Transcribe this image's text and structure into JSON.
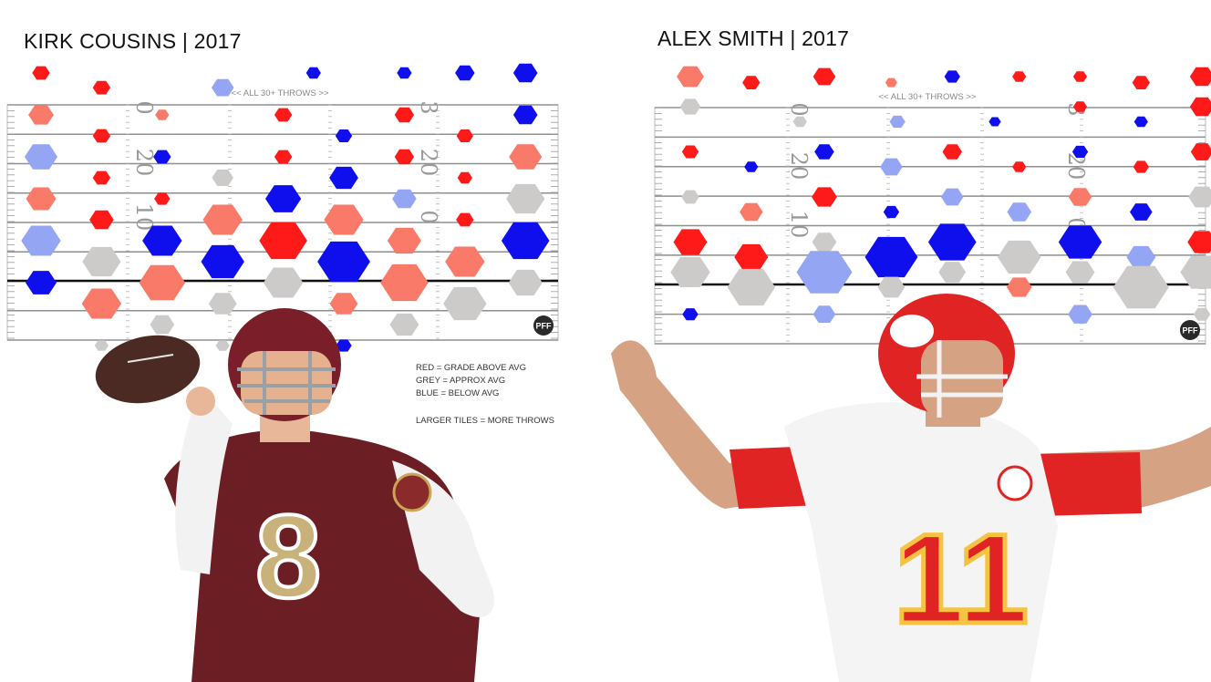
{
  "legend": {
    "red": "RED = GRADE ABOVE AVG",
    "grey": "GREY = APPROX AVG",
    "blue": "BLUE = BELOW AVG",
    "size": "LARGER TILES = MORE THROWS"
  },
  "colors": {
    "2": "#ff1a1a",
    "1": "#fa7a6a",
    "0": "#cdcaca",
    "-1": "#94a6f3",
    "-2": "#0f0fee",
    "field_line": "#8f8f8f",
    "los_line": "#111111"
  },
  "chart_data": [
    {
      "type": "heatmap",
      "title": "KIRK COUSINS | 2017",
      "subtitle": "<< ALL 30+ THROWS >>",
      "field_numbers": [
        "0",
        "3",
        "20",
        "20",
        "10",
        "0"
      ],
      "badge": "PFF",
      "columns": 9,
      "cells": [
        {
          "col": 0,
          "row": 0,
          "grade": 2,
          "size": 1
        },
        {
          "col": 1,
          "row": 0.35,
          "grade": 2,
          "size": 1
        },
        {
          "col": 3,
          "row": 0.35,
          "grade": -1,
          "size": 1.5
        },
        {
          "col": 4.5,
          "row": 0,
          "grade": -2,
          "size": 0.7
        },
        {
          "col": 6,
          "row": 0,
          "grade": -2,
          "size": 0.7
        },
        {
          "col": 7,
          "row": 0,
          "grade": -2,
          "size": 1.2
        },
        {
          "col": 8,
          "row": 0,
          "grade": -2,
          "size": 1.7
        },
        {
          "col": 0,
          "row": 1,
          "grade": 1,
          "size": 1.8
        },
        {
          "col": 2,
          "row": 1,
          "grade": 1,
          "size": 0.6
        },
        {
          "col": 4,
          "row": 1,
          "grade": 2,
          "size": 1
        },
        {
          "col": 6,
          "row": 1,
          "grade": 2,
          "size": 1.2
        },
        {
          "col": 8,
          "row": 1,
          "grade": -2,
          "size": 1.7
        },
        {
          "col": 1,
          "row": 1.5,
          "grade": 2,
          "size": 1
        },
        {
          "col": 5,
          "row": 1.5,
          "grade": -2,
          "size": 0.9
        },
        {
          "col": 7,
          "row": 1.5,
          "grade": 2,
          "size": 0.9
        },
        {
          "col": 0,
          "row": 2,
          "grade": -1,
          "size": 2.6
        },
        {
          "col": 2,
          "row": 2,
          "grade": -2,
          "size": 1
        },
        {
          "col": 4,
          "row": 2,
          "grade": 2,
          "size": 1
        },
        {
          "col": 6,
          "row": 2,
          "grade": 2,
          "size": 1.2
        },
        {
          "col": 8,
          "row": 2,
          "grade": 1,
          "size": 2.6
        },
        {
          "col": 1,
          "row": 2.5,
          "grade": 2,
          "size": 1
        },
        {
          "col": 3,
          "row": 2.5,
          "grade": 0,
          "size": 1.4
        },
        {
          "col": 5,
          "row": 2.5,
          "grade": -2,
          "size": 2.2
        },
        {
          "col": 7,
          "row": 2.5,
          "grade": 2,
          "size": 0.7
        },
        {
          "col": 0,
          "row": 3,
          "grade": 1,
          "size": 2.3
        },
        {
          "col": 2,
          "row": 3,
          "grade": 2,
          "size": 0.8
        },
        {
          "col": 4,
          "row": 3,
          "grade": -2,
          "size": 2.9
        },
        {
          "col": 6,
          "row": 3,
          "grade": -1,
          "size": 1.7
        },
        {
          "col": 8,
          "row": 3,
          "grade": 0,
          "size": 3.2
        },
        {
          "col": 1,
          "row": 3.5,
          "grade": 2,
          "size": 1.7
        },
        {
          "col": 3,
          "row": 3.5,
          "grade": 1,
          "size": 3.3
        },
        {
          "col": 5,
          "row": 3.5,
          "grade": 1,
          "size": 3.3
        },
        {
          "col": 7,
          "row": 3.5,
          "grade": 2,
          "size": 1
        },
        {
          "col": 0,
          "row": 4,
          "grade": -1,
          "size": 3.3
        },
        {
          "col": 2,
          "row": 4,
          "grade": -2,
          "size": 3.3
        },
        {
          "col": 4,
          "row": 4,
          "grade": 2,
          "size": 4.2
        },
        {
          "col": 6,
          "row": 4,
          "grade": 1,
          "size": 2.7
        },
        {
          "col": 8,
          "row": 4,
          "grade": -2,
          "size": 4.2
        },
        {
          "col": 1,
          "row": 4.5,
          "grade": 0,
          "size": 3.2
        },
        {
          "col": 3,
          "row": 4.5,
          "grade": -2,
          "size": 3.7
        },
        {
          "col": 5,
          "row": 4.5,
          "grade": -2,
          "size": 4.7
        },
        {
          "col": 7,
          "row": 4.5,
          "grade": 1,
          "size": 3.3
        },
        {
          "col": 0,
          "row": 5,
          "grade": -2,
          "size": 2.4
        },
        {
          "col": 2,
          "row": 5,
          "grade": 1,
          "size": 4
        },
        {
          "col": 4,
          "row": 5,
          "grade": 0,
          "size": 3.3
        },
        {
          "col": 6,
          "row": 5,
          "grade": 1,
          "size": 4.2
        },
        {
          "col": 8,
          "row": 5,
          "grade": 0,
          "size": 2.7
        },
        {
          "col": 1,
          "row": 5.5,
          "grade": 1,
          "size": 3.3
        },
        {
          "col": 3,
          "row": 5.5,
          "grade": 0,
          "size": 2.1
        },
        {
          "col": 5,
          "row": 5.5,
          "grade": 1,
          "size": 2.1
        },
        {
          "col": 7,
          "row": 5.5,
          "grade": 0,
          "size": 3.7
        },
        {
          "col": 2,
          "row": 6,
          "grade": 0,
          "size": 1.7
        },
        {
          "col": 6,
          "row": 6,
          "grade": 0,
          "size": 2.2
        },
        {
          "col": 1,
          "row": 6.5,
          "grade": 0,
          "size": 0.6
        },
        {
          "col": 3,
          "row": 6.5,
          "grade": 0,
          "size": 0.6
        },
        {
          "col": 5,
          "row": 6.5,
          "grade": -2,
          "size": 0.8
        }
      ]
    },
    {
      "type": "heatmap",
      "title": "ALEX SMITH | 2017",
      "subtitle": "<< ALL 30+ THROWS >>",
      "field_numbers": [
        "0",
        "3",
        "20",
        "20",
        "10",
        "0"
      ],
      "badge": "PFF",
      "columns": 9,
      "cells": [
        {
          "col": 0,
          "row": 0,
          "grade": 1,
          "size": 2
        },
        {
          "col": 1,
          "row": 0.2,
          "grade": 2,
          "size": 1
        },
        {
          "col": 2.2,
          "row": 0,
          "grade": 2,
          "size": 1.5
        },
        {
          "col": 3.3,
          "row": 0.2,
          "grade": 1,
          "size": 0.4
        },
        {
          "col": 4.3,
          "row": 0,
          "grade": -2,
          "size": 0.8
        },
        {
          "col": 5.4,
          "row": 0,
          "grade": 2,
          "size": 0.6
        },
        {
          "col": 6.4,
          "row": 0,
          "grade": 2,
          "size": 0.6
        },
        {
          "col": 7.4,
          "row": 0.2,
          "grade": 2,
          "size": 1
        },
        {
          "col": 8.4,
          "row": 0,
          "grade": 2,
          "size": 1.7
        },
        {
          "col": 0,
          "row": 1,
          "grade": 0,
          "size": 1.3
        },
        {
          "col": 1.8,
          "row": 1.5,
          "grade": 0,
          "size": 0.6
        },
        {
          "col": 3.4,
          "row": 1.5,
          "grade": -1,
          "size": 0.8
        },
        {
          "col": 5,
          "row": 1.5,
          "grade": -2,
          "size": 0.4
        },
        {
          "col": 6.4,
          "row": 1,
          "grade": 2,
          "size": 0.6
        },
        {
          "col": 7.4,
          "row": 1.5,
          "grade": -2,
          "size": 0.6
        },
        {
          "col": 8.4,
          "row": 1,
          "grade": 2,
          "size": 1.7
        },
        {
          "col": 0,
          "row": 2.5,
          "grade": 2,
          "size": 0.9
        },
        {
          "col": 2.2,
          "row": 2.5,
          "grade": -2,
          "size": 1.2
        },
        {
          "col": 4.3,
          "row": 2.5,
          "grade": 2,
          "size": 1.2
        },
        {
          "col": 6.4,
          "row": 2.5,
          "grade": -2,
          "size": 0.8
        },
        {
          "col": 8.4,
          "row": 2.5,
          "grade": 2,
          "size": 1.5
        },
        {
          "col": 1,
          "row": 3,
          "grade": -2,
          "size": 0.6
        },
        {
          "col": 3.3,
          "row": 3,
          "grade": -1,
          "size": 1.5
        },
        {
          "col": 5.4,
          "row": 3,
          "grade": 2,
          "size": 0.6
        },
        {
          "col": 7.4,
          "row": 3,
          "grade": 2,
          "size": 0.8
        },
        {
          "col": 0,
          "row": 4,
          "grade": 0,
          "size": 1
        },
        {
          "col": 2.2,
          "row": 4,
          "grade": 2,
          "size": 1.8
        },
        {
          "col": 4.3,
          "row": 4,
          "grade": -1,
          "size": 1.5
        },
        {
          "col": 6.4,
          "row": 4,
          "grade": 1,
          "size": 1.6
        },
        {
          "col": 8.4,
          "row": 4,
          "grade": 0,
          "size": 2
        },
        {
          "col": 1,
          "row": 4.5,
          "grade": 1,
          "size": 1.6
        },
        {
          "col": 3.3,
          "row": 4.5,
          "grade": -2,
          "size": 0.8
        },
        {
          "col": 5.4,
          "row": 4.5,
          "grade": -1,
          "size": 1.7
        },
        {
          "col": 7.4,
          "row": 4.5,
          "grade": -2,
          "size": 1.5
        },
        {
          "col": 0,
          "row": 5.5,
          "grade": 2,
          "size": 2.7
        },
        {
          "col": 2.2,
          "row": 5.5,
          "grade": 0,
          "size": 1.7
        },
        {
          "col": 4.3,
          "row": 5.5,
          "grade": -2,
          "size": 4.2
        },
        {
          "col": 6.4,
          "row": 5.5,
          "grade": -2,
          "size": 3.7
        },
        {
          "col": 8.4,
          "row": 5.5,
          "grade": 2,
          "size": 2.2
        },
        {
          "col": 1,
          "row": 6,
          "grade": 2,
          "size": 2.7
        },
        {
          "col": 3.3,
          "row": 6,
          "grade": -2,
          "size": 4.7
        },
        {
          "col": 5.4,
          "row": 6,
          "grade": 0,
          "size": 3.7
        },
        {
          "col": 7.4,
          "row": 6,
          "grade": -1,
          "size": 2.2
        },
        {
          "col": 0,
          "row": 6.5,
          "grade": 0,
          "size": 3.3
        },
        {
          "col": 2.2,
          "row": 6.5,
          "grade": -1,
          "size": 5
        },
        {
          "col": 4.3,
          "row": 6.5,
          "grade": 0,
          "size": 2
        },
        {
          "col": 6.4,
          "row": 6.5,
          "grade": 0,
          "size": 2.2
        },
        {
          "col": 8.4,
          "row": 6.5,
          "grade": 0,
          "size": 3.7
        },
        {
          "col": 1,
          "row": 7,
          "grade": 0,
          "size": 4.2
        },
        {
          "col": 3.3,
          "row": 7,
          "grade": 0,
          "size": 2
        },
        {
          "col": 5.4,
          "row": 7,
          "grade": 1,
          "size": 1.8
        },
        {
          "col": 7.4,
          "row": 7,
          "grade": 0,
          "size": 5
        },
        {
          "col": 0,
          "row": 7.9,
          "grade": -2,
          "size": 0.8
        },
        {
          "col": 2.2,
          "row": 7.9,
          "grade": -1,
          "size": 1.5
        },
        {
          "col": 6.4,
          "row": 7.9,
          "grade": -1,
          "size": 1.7
        },
        {
          "col": 8.4,
          "row": 7.9,
          "grade": 0,
          "size": 0.9
        }
      ]
    }
  ]
}
